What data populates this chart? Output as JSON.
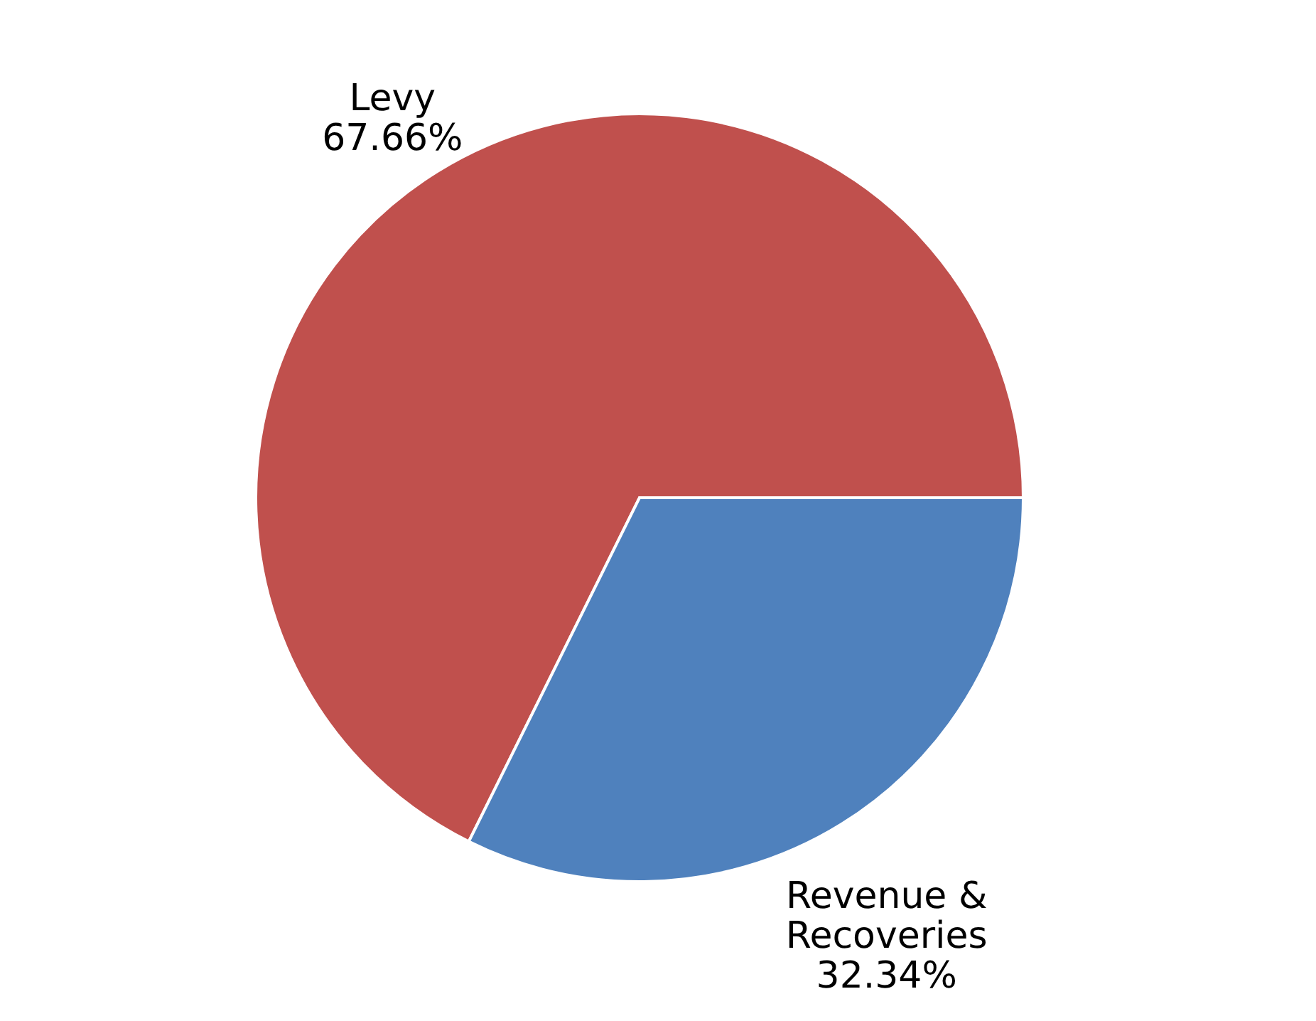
{
  "chart_data": {
    "type": "pie",
    "categories": [
      "Levy",
      "Revenue & Recoveries"
    ],
    "values": [
      67.66,
      32.34
    ],
    "colors": [
      "#c0504d",
      "#4f81bd"
    ],
    "value_labels": [
      "67.66%",
      "32.34%"
    ]
  }
}
